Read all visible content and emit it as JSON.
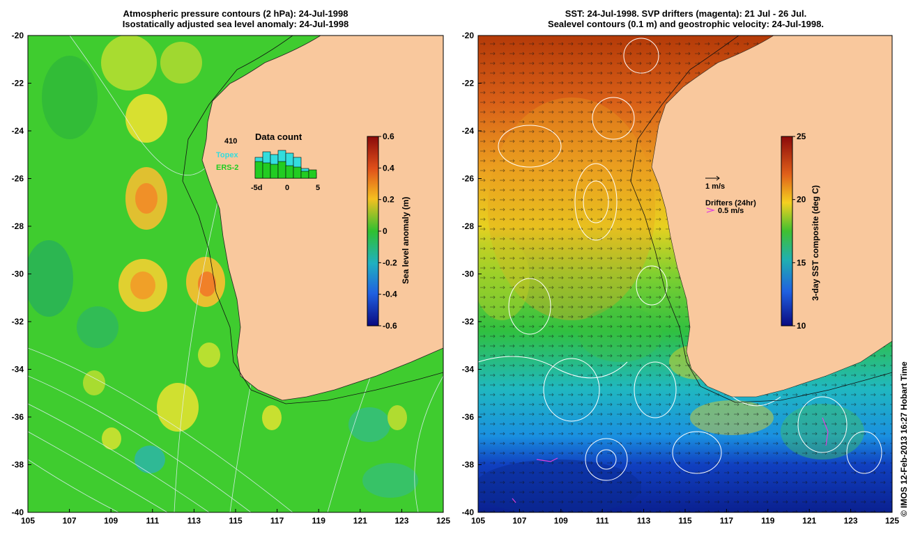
{
  "left_panel": {
    "title_line1": "Atmospheric pressure contours (2 hPa): 24-Jul-1998",
    "title_line2": "Isostatically adjusted sea level anomaly: 24-Jul-1998",
    "colorbar": {
      "label": "Sea level anomaly (m)",
      "ticks": [
        "0.6",
        "0.4",
        "0.2",
        "0",
        "-0.2",
        "-0.4",
        "-0.6"
      ]
    },
    "data_count": {
      "title": "Data count",
      "max_label": "410",
      "topex_label": "Topex",
      "ers_label": "ERS-2",
      "x_ticks": [
        "-5d",
        "0",
        "5"
      ],
      "topex_color": "#33dddd",
      "ers_color": "#22cc22"
    }
  },
  "right_panel": {
    "title_line1": "SST: 24-Jul-1998. SVP drifters (magenta): 21 Jul - 26 Jul.",
    "title_line2": "Sealevel contours (0.1 m) and geostrophic velocity: 24-Jul-1998.",
    "colorbar": {
      "label": "3-day SST composite (deg C)",
      "ticks": [
        "25",
        "20",
        "15",
        "10"
      ]
    },
    "velocity_key": "1 m/s",
    "drifters_label": "Drifters (24hr)",
    "drifters_speed": "0.5 m/s"
  },
  "axes": {
    "lat_ticks": [
      "-20",
      "-22",
      "-24",
      "-26",
      "-28",
      "-30",
      "-32",
      "-34",
      "-36",
      "-38",
      "-40"
    ],
    "lon_ticks": [
      "105",
      "107",
      "109",
      "111",
      "113",
      "115",
      "117",
      "119",
      "121",
      "123",
      "125"
    ]
  },
  "credit": "© IMOS 12-Feb-2013 16:27 Hobart Time",
  "colors": {
    "land": "#f9c89d",
    "sea_green": "#3fcc2f",
    "anomaly_high": "#f0a020",
    "sst_warm": "#c84a10",
    "sst_cold": "#0a2aa0"
  }
}
